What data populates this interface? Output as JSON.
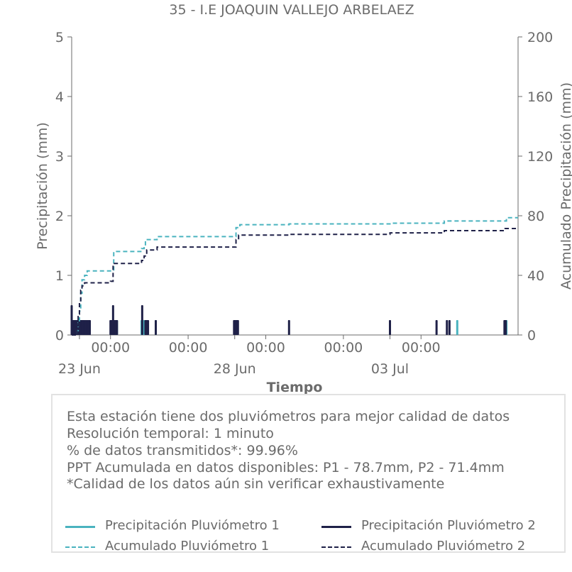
{
  "chart_data": {
    "type": "bar",
    "title": "35 - I.E JOAQUIN VALLEJO ARBELAEZ",
    "xlabel": "Tiempo",
    "ylabel": "Precipitación (mm)",
    "y2label": "Acumulado Precipitación (mm)",
    "ylim": [
      0,
      5
    ],
    "y2lim": [
      0,
      200
    ],
    "yticks": [
      "0",
      "1",
      "2",
      "3",
      "4",
      "5"
    ],
    "y2ticks": [
      "0",
      "40",
      "80",
      "120",
      "160",
      "200"
    ],
    "xlim": [
      "2023-06-22T18:00",
      "2023-07-07T03:00"
    ],
    "xticks_major": [
      "00:00",
      "00:00",
      "00:00",
      "00:00",
      "00:00"
    ],
    "xticks_minor": [
      "23 Jun",
      "28 Jun",
      "03 Jul"
    ],
    "grid": false,
    "colors": {
      "p1": "#4ab3bf",
      "p2": "#1f2148",
      "axis": "#6b6b6b"
    },
    "series": [
      {
        "name": "Precipitación Pluviómetro 1",
        "kind": "bar",
        "axis": "left",
        "points": [
          [
            "2023-06-22T23:00",
            0.25
          ],
          [
            "2023-06-23T00:00",
            0.25
          ],
          [
            "2023-06-23T01:00",
            0.25
          ],
          [
            "2023-06-23T02:00",
            0.25
          ],
          [
            "2023-06-23T03:00",
            0.25
          ],
          [
            "2023-06-23T04:00",
            0.25
          ],
          [
            "2023-06-24T02:30",
            0.25
          ],
          [
            "2023-06-24T03:30",
            0.25
          ],
          [
            "2023-06-24T05:00",
            0.25
          ],
          [
            "2023-06-25T00:00",
            0.25
          ],
          [
            "2023-06-25T01:30",
            0.25
          ],
          [
            "2023-06-25T02:30",
            0.25
          ],
          [
            "2023-06-25T11:00",
            0.25
          ],
          [
            "2023-06-28T00:00",
            0.25
          ],
          [
            "2023-06-28T02:00",
            0.25
          ],
          [
            "2023-07-05T04:00",
            0.25
          ],
          [
            "2023-07-06T18:00",
            0.25
          ]
        ]
      },
      {
        "name": "Precipitación Pluviómetro 2",
        "kind": "bar",
        "axis": "left",
        "points": [
          [
            "2023-06-22T18:00",
            0.5
          ],
          [
            "2023-06-22T19:00",
            0.25
          ],
          [
            "2023-06-22T20:00",
            0.25
          ],
          [
            "2023-06-22T21:00",
            0.25
          ],
          [
            "2023-06-22T22:00",
            0.25
          ],
          [
            "2023-06-22T23:00",
            0.25
          ],
          [
            "2023-06-23T00:00",
            0.25
          ],
          [
            "2023-06-23T01:00",
            0.25
          ],
          [
            "2023-06-23T02:00",
            0.25
          ],
          [
            "2023-06-23T03:00",
            0.25
          ],
          [
            "2023-06-23T04:00",
            0.25
          ],
          [
            "2023-06-23T05:00",
            0.25
          ],
          [
            "2023-06-23T06:00",
            0.25
          ],
          [
            "2023-06-23T07:00",
            0.25
          ],
          [
            "2023-06-23T08:00",
            0.25
          ],
          [
            "2023-06-24T00:00",
            0.25
          ],
          [
            "2023-06-24T01:00",
            0.25
          ],
          [
            "2023-06-24T02:00",
            0.5
          ],
          [
            "2023-06-24T03:00",
            0.25
          ],
          [
            "2023-06-24T04:00",
            0.25
          ],
          [
            "2023-06-24T05:00",
            0.25
          ],
          [
            "2023-06-25T00:30",
            0.5
          ],
          [
            "2023-06-25T03:00",
            0.25
          ],
          [
            "2023-06-25T04:00",
            0.25
          ],
          [
            "2023-06-25T05:00",
            0.25
          ],
          [
            "2023-06-25T11:00",
            0.25
          ],
          [
            "2023-06-27T23:30",
            0.25
          ],
          [
            "2023-06-28T00:30",
            0.25
          ],
          [
            "2023-06-28T01:30",
            0.25
          ],
          [
            "2023-06-28T02:30",
            0.25
          ],
          [
            "2023-06-29T18:00",
            0.25
          ],
          [
            "2023-07-03T00:00",
            0.25
          ],
          [
            "2023-07-04T12:00",
            0.25
          ],
          [
            "2023-07-04T20:00",
            0.25
          ],
          [
            "2023-07-04T22:00",
            0.25
          ],
          [
            "2023-07-06T16:30",
            0.25
          ],
          [
            "2023-07-06T17:30",
            0.25
          ]
        ]
      },
      {
        "name": "Acumulado Pluviómetro 1",
        "kind": "step",
        "axis": "right",
        "points": [
          [
            "2023-06-22T18:00",
            0
          ],
          [
            "2023-06-22T22:00",
            3
          ],
          [
            "2023-06-22T23:00",
            8
          ],
          [
            "2023-06-23T00:00",
            16
          ],
          [
            "2023-06-23T01:00",
            28
          ],
          [
            "2023-06-23T02:00",
            37
          ],
          [
            "2023-06-23T04:00",
            40
          ],
          [
            "2023-06-23T06:00",
            43
          ],
          [
            "2023-06-24T00:00",
            43
          ],
          [
            "2023-06-24T02:30",
            56
          ],
          [
            "2023-06-25T00:00",
            58
          ],
          [
            "2023-06-25T02:00",
            60
          ],
          [
            "2023-06-25T03:00",
            64
          ],
          [
            "2023-06-25T12:00",
            66
          ],
          [
            "2023-06-28T00:00",
            66
          ],
          [
            "2023-06-28T01:00",
            72
          ],
          [
            "2023-06-28T04:00",
            74
          ],
          [
            "2023-06-29T18:00",
            74.5
          ],
          [
            "2023-07-03T00:00",
            75
          ],
          [
            "2023-07-04T18:00",
            76.5
          ],
          [
            "2023-07-06T18:00",
            78.7
          ],
          [
            "2023-07-07T03:00",
            78.7
          ]
        ]
      },
      {
        "name": "Acumulado Pluviómetro 2",
        "kind": "step",
        "axis": "right",
        "points": [
          [
            "2023-06-22T18:00",
            0
          ],
          [
            "2023-06-22T22:00",
            6
          ],
          [
            "2023-06-22T23:00",
            14
          ],
          [
            "2023-06-23T00:00",
            22
          ],
          [
            "2023-06-23T01:00",
            30
          ],
          [
            "2023-06-23T02:00",
            33
          ],
          [
            "2023-06-23T04:00",
            35
          ],
          [
            "2023-06-24T00:00",
            36
          ],
          [
            "2023-06-24T02:00",
            48
          ],
          [
            "2023-06-25T00:00",
            50
          ],
          [
            "2023-06-25T02:00",
            53
          ],
          [
            "2023-06-25T04:00",
            57
          ],
          [
            "2023-06-25T12:00",
            59
          ],
          [
            "2023-06-28T00:00",
            59
          ],
          [
            "2023-06-28T01:00",
            64
          ],
          [
            "2023-06-28T03:00",
            67
          ],
          [
            "2023-06-29T18:00",
            67.5
          ],
          [
            "2023-07-03T00:00",
            68.5
          ],
          [
            "2023-07-04T18:00",
            70
          ],
          [
            "2023-07-06T17:00",
            71.4
          ],
          [
            "2023-07-07T03:00",
            71.4
          ]
        ]
      }
    ]
  },
  "info": {
    "line1": "Esta estación tiene dos pluviómetros para mejor calidad de datos",
    "line2": "Resolución temporal: 1 minuto",
    "line3": "% de datos transmitidos*: 99.96%",
    "line4": "PPT Acumulada en datos disponibles: P1 - 78.7mm, P2 - 71.4mm",
    "line5": "*Calidad de los datos aún sin verificar exhaustivamente"
  },
  "legend": {
    "p1": "Precipitación Pluviómetro 1",
    "p2": "Precipitación Pluviómetro 2",
    "a1": "Acumulado Pluviómetro 1",
    "a2": "Acumulado Pluviómetro 2"
  }
}
